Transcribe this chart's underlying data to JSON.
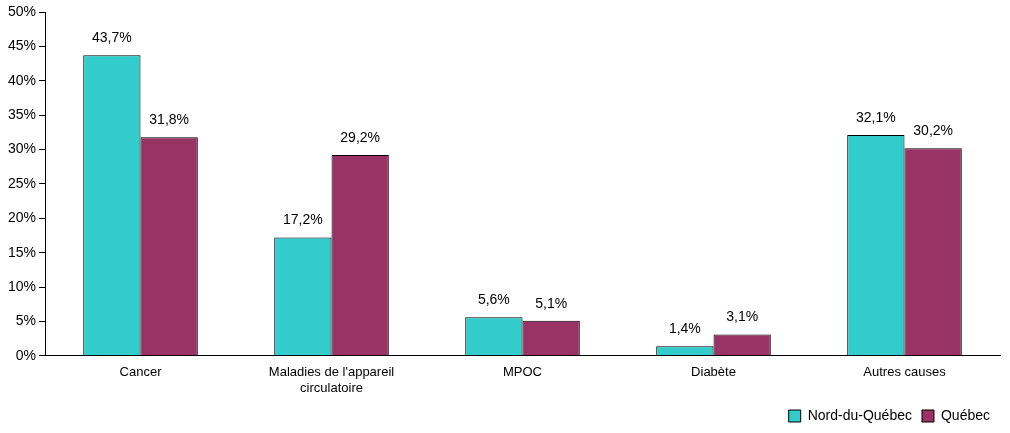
{
  "chart_data": {
    "type": "bar",
    "categories": [
      "Cancer",
      "Maladies de l'appareil circulatoire",
      "MPOC",
      "Diabète",
      "Autres causes"
    ],
    "series": [
      {
        "name": "Nord-du-Québec",
        "color": "#33cccc",
        "values": [
          43.7,
          17.2,
          5.6,
          1.4,
          32.1
        ],
        "value_labels": [
          "43,7%",
          "17,2%",
          "5,6%",
          "1,4%",
          "32,1%"
        ]
      },
      {
        "name": "Québec",
        "color": "#993366",
        "values": [
          31.8,
          29.2,
          5.1,
          3.1,
          30.2
        ],
        "value_labels": [
          "31,8%",
          "29,2%",
          "5,1%",
          "3,1%",
          "30,2%"
        ]
      }
    ],
    "ylim": [
      0,
      50
    ],
    "yticks": [
      {
        "value": 0,
        "label": "0%"
      },
      {
        "value": 5,
        "label": "5%"
      },
      {
        "value": 10,
        "label": "10%"
      },
      {
        "value": 15,
        "label": "15%"
      },
      {
        "value": 20,
        "label": "20%"
      },
      {
        "value": 25,
        "label": "25%"
      },
      {
        "value": 30,
        "label": "30%"
      },
      {
        "value": 35,
        "label": "35%"
      },
      {
        "value": 40,
        "label": "40%"
      },
      {
        "value": 45,
        "label": "45%"
      },
      {
        "value": 50,
        "label": "50%"
      }
    ],
    "grid": false,
    "legend": "bottom right"
  }
}
